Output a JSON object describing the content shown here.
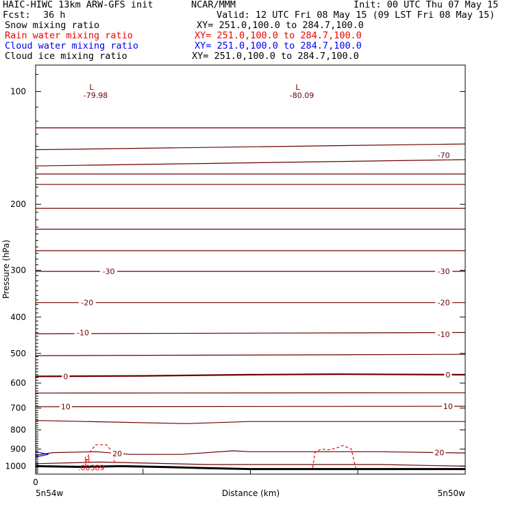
{
  "header": {
    "model": "HAIC-HIWC 13km ARW-GFS init",
    "org": "NCAR/MMM",
    "init": "Init: 00 UTC Thu 07 May 15",
    "fcst_label": "Fcst:",
    "fcst_value": "36 h",
    "valid": "Valid: 12 UTC Fri 08 May 15 (09 LST Fri 08 May 15)"
  },
  "legend": [
    {
      "label": "Snow mixing ratio",
      "xy": "XY= 251.0,100.0 to 284.7,100.0",
      "color": "#000000"
    },
    {
      "label": "Rain water mixing ratio",
      "xy": "XY= 251.0,100.0 to 284.7,100.0",
      "color": "#ee0000"
    },
    {
      "label": "Cloud water mixing ratio",
      "xy": "XY= 251.0,100.0 to 284.7,100.0",
      "color": "#0000ee"
    },
    {
      "label": "Cloud ice mixing ratio",
      "xy": "XY= 251.0,100.0 to 284.7,100.0",
      "color": "#000000"
    }
  ],
  "chart_data": {
    "type": "line",
    "xlabel": "Distance (km)",
    "ylabel": "Pressure (hPa)",
    "y_scale": "log",
    "ylim": [
      1050,
      85
    ],
    "xlim": [
      0,
      100
    ],
    "yticks": [
      100,
      200,
      300,
      400,
      500,
      600,
      700,
      800,
      900,
      1000
    ],
    "x_zero_label": "0",
    "x_left_label": "5n54w",
    "x_right_label": "5n50w",
    "isotherm_color": "#6b0000",
    "series": [
      {
        "level": -80,
        "x": [
          0,
          100
        ],
        "y": [
          125,
          125
        ]
      },
      {
        "level": -80,
        "x": [
          0,
          100
        ],
        "y": [
          143,
          138
        ]
      },
      {
        "level": -70,
        "x": [
          0,
          100
        ],
        "y": [
          158,
          152
        ]
      },
      {
        "level": -70,
        "x": [
          0,
          100
        ],
        "y": [
          166,
          166
        ]
      },
      {
        "level": -60,
        "x": [
          0,
          100
        ],
        "y": [
          177,
          177
        ]
      },
      {
        "level": -50,
        "x": [
          0,
          100
        ],
        "y": [
          205,
          205
        ]
      },
      {
        "level": -40,
        "x": [
          0,
          100
        ],
        "y": [
          233,
          233
        ]
      },
      {
        "level": -40,
        "x": [
          0,
          100
        ],
        "y": [
          266,
          266
        ]
      },
      {
        "level": -30,
        "x": [
          0,
          100
        ],
        "y": [
          302,
          302
        ]
      },
      {
        "level": -20,
        "x": [
          0,
          100
        ],
        "y": [
          366,
          366
        ]
      },
      {
        "level": -10,
        "x": [
          0,
          100
        ],
        "y": [
          443,
          440
        ]
      },
      {
        "level": -5,
        "x": [
          0,
          100
        ],
        "y": [
          507,
          503
        ]
      },
      {
        "level": 0,
        "x": [
          0,
          25,
          50,
          70,
          100
        ],
        "y": [
          576,
          574,
          570,
          568,
          570
        ]
      },
      {
        "level": 5,
        "x": [
          0,
          100
        ],
        "y": [
          638,
          637
        ]
      },
      {
        "level": 10,
        "x": [
          0,
          100
        ],
        "y": [
          694,
          692
        ]
      },
      {
        "level": 15,
        "x": [
          0,
          35,
          50,
          100
        ],
        "y": [
          755,
          770,
          760,
          760
        ]
      },
      {
        "level": 20,
        "x": [
          0,
          4,
          14,
          22,
          34,
          46,
          50,
          60,
          80,
          100
        ],
        "y": [
          935,
          920,
          915,
          930,
          930,
          910,
          915,
          915,
          915,
          922
        ]
      },
      {
        "level": 25,
        "x": [
          0,
          15,
          40,
          80,
          100
        ],
        "y": [
          985,
          975,
          990,
          990,
          1000
        ]
      }
    ],
    "level_labels": [
      {
        "text": "-70",
        "x": 95,
        "y": 148
      },
      {
        "text": "-30",
        "x": 17,
        "y": 302
      },
      {
        "text": "-30",
        "x": 95,
        "y": 302
      },
      {
        "text": "-20",
        "x": 12,
        "y": 366
      },
      {
        "text": "-20",
        "x": 95,
        "y": 366
      },
      {
        "text": "-10",
        "x": 11,
        "y": 440
      },
      {
        "text": "-10",
        "x": 95,
        "y": 445
      },
      {
        "text": "0",
        "x": 7,
        "y": 576
      },
      {
        "text": "0",
        "x": 96,
        "y": 570
      },
      {
        "text": "10",
        "x": 7,
        "y": 694
      },
      {
        "text": "10",
        "x": 96,
        "y": 692
      },
      {
        "text": "20",
        "x": 19,
        "y": 925
      },
      {
        "text": "20",
        "x": 94,
        "y": 920
      }
    ],
    "extrema": [
      {
        "mark": "L",
        "value": "-79.98",
        "x": 13,
        "y": 99
      },
      {
        "mark": "L",
        "value": "-80.09",
        "x": 61,
        "y": 99
      },
      {
        "mark": "H",
        "value": ".00389",
        "x": 12,
        "y": 975
      }
    ],
    "terrain": {
      "x": [
        0,
        10,
        20,
        30,
        40,
        50,
        60,
        70,
        80,
        90,
        100
      ],
      "y": [
        1000,
        1004,
        1000,
        1005,
        1012,
        1018,
        1018,
        1018,
        1018,
        1018,
        1018
      ]
    },
    "rain_contours": [
      {
        "x": [
          11.5,
          12.5,
          14,
          16.5,
          18,
          18.5
        ],
        "y": [
          1000,
          920,
          877,
          877,
          920,
          1000
        ]
      },
      {
        "x": [
          64.5,
          65,
          66.5,
          68,
          70,
          71.5,
          73.5,
          74.5
        ],
        "y": [
          1010,
          920,
          900,
          905,
          895,
          880,
          900,
          1010
        ]
      }
    ],
    "cloud_water": {
      "x": [
        0,
        3,
        0
      ],
      "y": [
        915,
        930,
        945
      ]
    }
  }
}
